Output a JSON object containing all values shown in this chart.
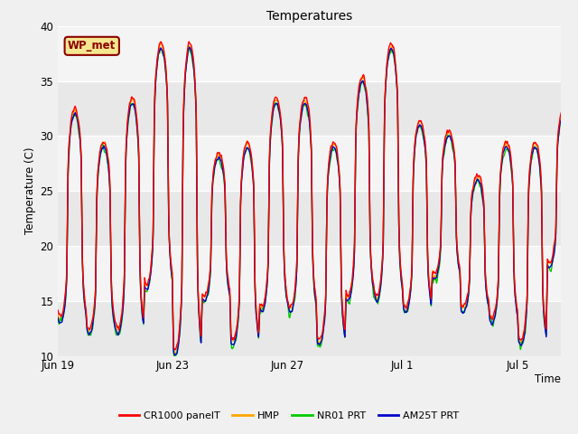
{
  "title": "Temperatures",
  "ylabel": "Temperature (C)",
  "xlabel": "Time",
  "ylim": [
    10,
    40
  ],
  "yticks": [
    10,
    15,
    20,
    25,
    30,
    35,
    40
  ],
  "fig_bg_color": "#f0f0f0",
  "plot_bg_color": "#e8e8e8",
  "annotation_text": "WP_met",
  "annotation_bg": "#f5e690",
  "annotation_border": "#8b0000",
  "legend_entries": [
    "CR1000 panelT",
    "HMP",
    "NR01 PRT",
    "AM25T PRT"
  ],
  "line_colors": [
    "#ff0000",
    "#ffa500",
    "#00cc00",
    "#0000cc"
  ],
  "line_width": 1.0,
  "x_tick_labels": [
    "Jun 19",
    "Jun 23",
    "Jun 27",
    "Jul 1",
    "Jul 5"
  ],
  "x_tick_positions": [
    0,
    4,
    8,
    12,
    16
  ],
  "white_band_ranges": [
    [
      15,
      20
    ],
    [
      25,
      30
    ],
    [
      35,
      40
    ]
  ],
  "day_peaks": [
    32,
    29,
    33,
    38,
    38,
    28,
    29,
    33,
    33,
    29,
    35,
    38,
    31,
    30,
    26,
    29,
    29,
    32
  ],
  "day_troughs": [
    13,
    12,
    12,
    16,
    10,
    15,
    11,
    14,
    14,
    11,
    15,
    15,
    14,
    17,
    14,
    13,
    11,
    18
  ]
}
